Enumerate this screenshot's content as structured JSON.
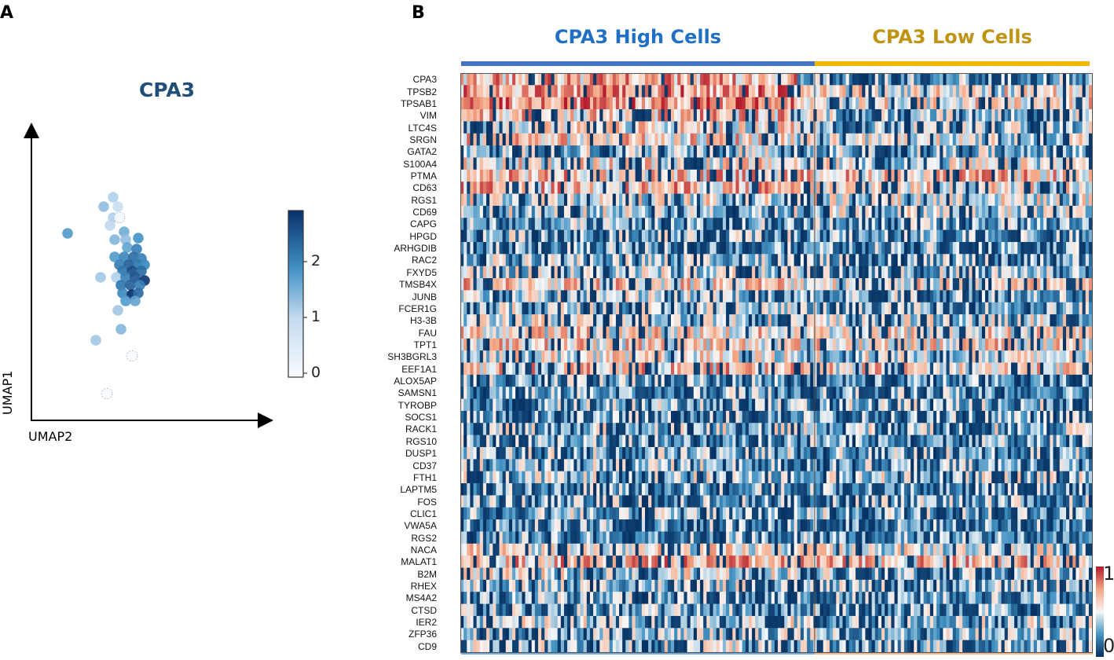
{
  "panels": {
    "a": "A",
    "b": "B"
  },
  "colors": {
    "umap_dark": "#08306b",
    "umap_light": "#f7fbff",
    "high_bar": "#4472c4",
    "low_bar": "#f0b800",
    "heat_low": "#053061",
    "heat_mid": "#f7f7f7",
    "heat_high": "#b2182b"
  },
  "chart_data": [
    {
      "type": "scatter",
      "title": "CPA3",
      "xlabel": "UMAP2",
      "ylabel": "UMAP1",
      "colorbar": {
        "ticks": [
          "0",
          "1",
          "2"
        ],
        "range": [
          0,
          2.8
        ]
      },
      "points_note": "UMAP1/UMAP2 embedding coordinates (arbitrary units); c = CPA3 expression",
      "points": [
        {
          "x": 2.6,
          "y": 7.1,
          "c": 1.1
        },
        {
          "x": 2.3,
          "y": 6.8,
          "c": 1.3
        },
        {
          "x": 2.75,
          "y": 6.8,
          "c": 0.9
        },
        {
          "x": 2.6,
          "y": 6.45,
          "c": 1.1
        },
        {
          "x": 2.8,
          "y": 6.45,
          "c": 0.1
        },
        {
          "x": 2.5,
          "y": 6.2,
          "c": 1.0
        },
        {
          "x": 1.15,
          "y": 5.95,
          "c": 1.7
        },
        {
          "x": 2.95,
          "y": 6.0,
          "c": 1.5
        },
        {
          "x": 2.65,
          "y": 5.75,
          "c": 1.4
        },
        {
          "x": 3.0,
          "y": 5.75,
          "c": 1.3
        },
        {
          "x": 3.4,
          "y": 5.8,
          "c": 1.8
        },
        {
          "x": 3.05,
          "y": 5.5,
          "c": 1.6
        },
        {
          "x": 3.35,
          "y": 5.45,
          "c": 2.0
        },
        {
          "x": 2.65,
          "y": 5.2,
          "c": 1.7
        },
        {
          "x": 2.95,
          "y": 5.2,
          "c": 1.9
        },
        {
          "x": 3.25,
          "y": 5.2,
          "c": 2.2
        },
        {
          "x": 3.5,
          "y": 5.15,
          "c": 2.0
        },
        {
          "x": 2.8,
          "y": 4.95,
          "c": 2.0
        },
        {
          "x": 3.1,
          "y": 4.95,
          "c": 2.3
        },
        {
          "x": 3.4,
          "y": 4.95,
          "c": 2.1
        },
        {
          "x": 3.6,
          "y": 4.95,
          "c": 1.9
        },
        {
          "x": 2.9,
          "y": 4.75,
          "c": 2.1
        },
        {
          "x": 3.2,
          "y": 4.75,
          "c": 2.5
        },
        {
          "x": 3.5,
          "y": 4.75,
          "c": 2.2
        },
        {
          "x": 2.2,
          "y": 4.55,
          "c": 1.2
        },
        {
          "x": 2.7,
          "y": 4.55,
          "c": 1.1
        },
        {
          "x": 3.0,
          "y": 4.55,
          "c": 2.0
        },
        {
          "x": 3.3,
          "y": 4.55,
          "c": 2.4
        },
        {
          "x": 3.6,
          "y": 4.45,
          "c": 2.7
        },
        {
          "x": 2.85,
          "y": 4.3,
          "c": 2.1
        },
        {
          "x": 3.15,
          "y": 4.3,
          "c": 2.3
        },
        {
          "x": 3.45,
          "y": 4.3,
          "c": 2.0
        },
        {
          "x": 2.9,
          "y": 4.05,
          "c": 1.9
        },
        {
          "x": 3.2,
          "y": 4.0,
          "c": 2.8
        },
        {
          "x": 3.4,
          "y": 4.05,
          "c": 2.2
        },
        {
          "x": 3.0,
          "y": 3.8,
          "c": 1.7
        },
        {
          "x": 3.3,
          "y": 3.8,
          "c": 1.6
        },
        {
          "x": 2.75,
          "y": 3.5,
          "c": 1.2
        },
        {
          "x": 2.85,
          "y": 2.9,
          "c": 1.4
        },
        {
          "x": 2.05,
          "y": 2.55,
          "c": 1.2
        },
        {
          "x": 3.2,
          "y": 2.05,
          "c": 0.0
        },
        {
          "x": 2.4,
          "y": 0.85,
          "c": 0.0
        }
      ]
    },
    {
      "type": "heatmap",
      "groups": [
        {
          "label": "CPA3 High Cells",
          "color": "#1f6fc4",
          "bar": "#4472c4",
          "n_cells": 104
        },
        {
          "label": "CPA3 Low Cells",
          "color": "#c09412",
          "bar": "#f0b800",
          "n_cells": 91
        }
      ],
      "genes": [
        "CPA3",
        "TPSB2",
        "TPSAB1",
        "VIM",
        "LTC4S",
        "SRGN",
        "GATA2",
        "S100A4",
        "PTMA",
        "CD63",
        "RGS1",
        "CD69",
        "CAPG",
        "HPGD",
        "ARHGDIB",
        "RAC2",
        "FXYD5",
        "TMSB4X",
        "JUNB",
        "FCER1G",
        "H3-3B",
        "FAU",
        "TPT1",
        "SH3BGRL3",
        "EEF1A1",
        "ALOX5AP",
        "SAMSN1",
        "TYROBP",
        "SOCS1",
        "RACK1",
        "RGS10",
        "DUSP1",
        "CD37",
        "FTH1",
        "LAPTM5",
        "FOS",
        "CLIC1",
        "VWA5A",
        "RGS2",
        "NACA",
        "MALAT1",
        "B2M",
        "RHEX",
        "MS4A2",
        "CTSD",
        "IER2",
        "ZFP36",
        "CD9"
      ],
      "colorbar": {
        "ticks": [
          "1",
          "0"
        ],
        "range": [
          0,
          1
        ]
      },
      "value_note": "scaled expression per cell (0-1); approximate mean level per gene in each group",
      "mean_high": [
        0.68,
        0.74,
        0.76,
        0.64,
        0.55,
        0.6,
        0.42,
        0.56,
        0.65,
        0.66,
        0.5,
        0.44,
        0.34,
        0.38,
        0.3,
        0.4,
        0.44,
        0.62,
        0.44,
        0.42,
        0.48,
        0.58,
        0.6,
        0.52,
        0.64,
        0.34,
        0.34,
        0.36,
        0.32,
        0.42,
        0.34,
        0.38,
        0.4,
        0.42,
        0.34,
        0.36,
        0.38,
        0.32,
        0.32,
        0.52,
        0.68,
        0.48,
        0.4,
        0.36,
        0.38,
        0.46,
        0.4,
        0.44
      ],
      "mean_low": [
        0.32,
        0.54,
        0.58,
        0.4,
        0.38,
        0.48,
        0.36,
        0.48,
        0.64,
        0.56,
        0.5,
        0.46,
        0.32,
        0.3,
        0.34,
        0.34,
        0.4,
        0.56,
        0.38,
        0.34,
        0.44,
        0.56,
        0.58,
        0.48,
        0.58,
        0.26,
        0.32,
        0.38,
        0.3,
        0.42,
        0.34,
        0.38,
        0.34,
        0.42,
        0.3,
        0.36,
        0.38,
        0.28,
        0.3,
        0.48,
        0.64,
        0.4,
        0.36,
        0.32,
        0.34,
        0.42,
        0.38,
        0.36
      ]
    }
  ]
}
